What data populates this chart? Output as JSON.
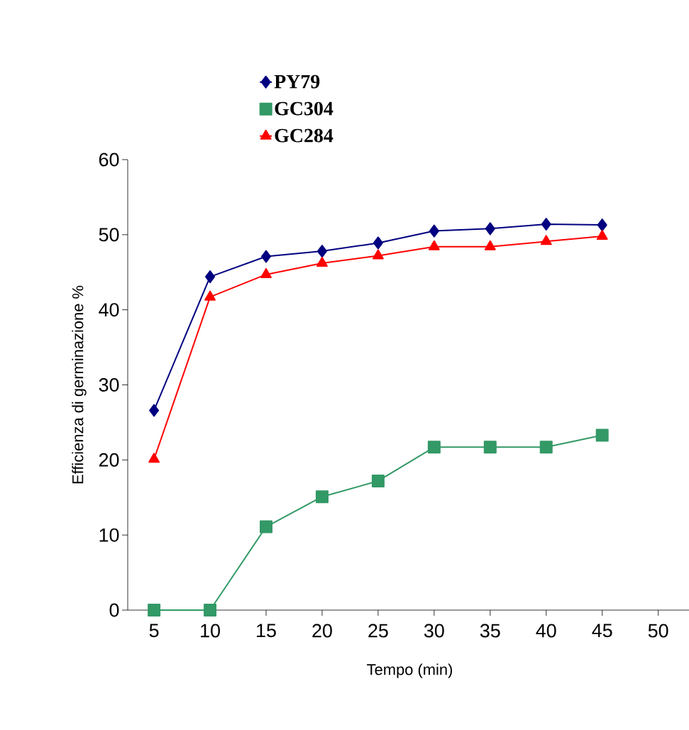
{
  "chart_data": {
    "type": "line",
    "xlabel": "Tempo (min)",
    "ylabel": "Efficienza di germinazione %",
    "categories": [
      "5",
      "10",
      "15",
      "20",
      "25",
      "30",
      "35",
      "40",
      "45",
      "50"
    ],
    "series": [
      {
        "name": "PY79",
        "color": "#000080",
        "marker": "diamond",
        "values": [
          26.6,
          44.4,
          47.1,
          47.8,
          48.9,
          50.5,
          50.8,
          51.4,
          51.3,
          null
        ]
      },
      {
        "name": "GC304",
        "color": "#339966",
        "marker": "square",
        "values": [
          0,
          0,
          11.1,
          15.1,
          17.2,
          21.7,
          21.7,
          21.7,
          23.3,
          null
        ]
      },
      {
        "name": "GC284",
        "color": "#ff0000",
        "marker": "triangle",
        "values": [
          20.1,
          41.7,
          44.7,
          46.2,
          47.2,
          48.4,
          48.4,
          49.1,
          49.8,
          null
        ]
      }
    ],
    "ylim": [
      0,
      60
    ],
    "yticks": [
      0,
      10,
      20,
      30,
      40,
      50,
      60
    ],
    "grid": false,
    "legend": "top",
    "line_style": "solid"
  }
}
